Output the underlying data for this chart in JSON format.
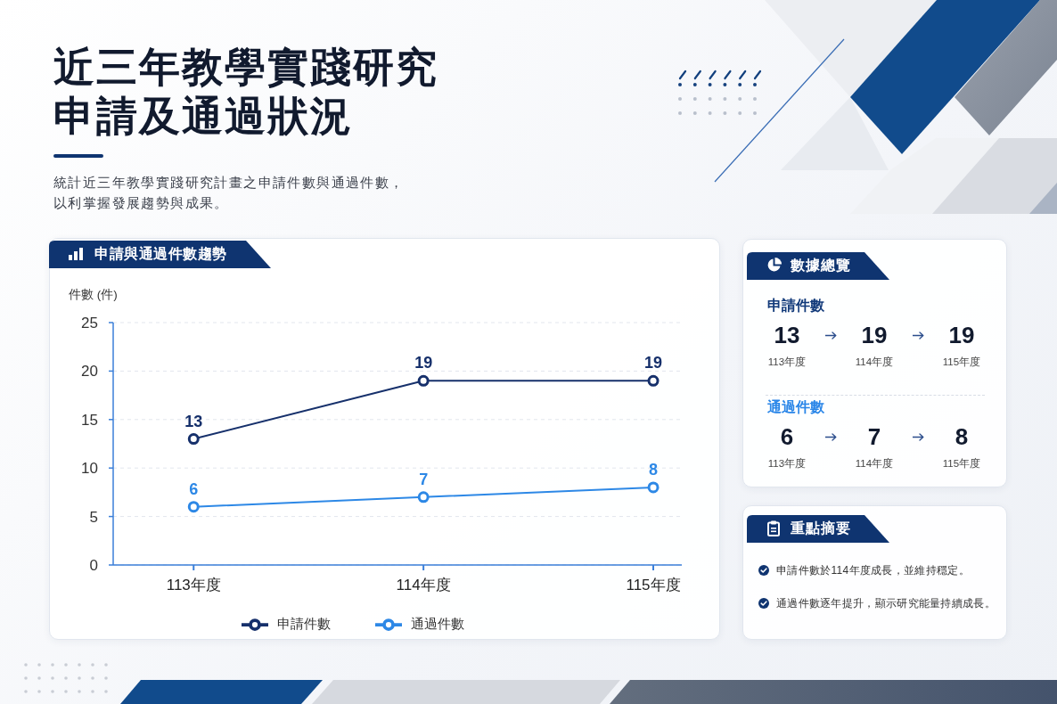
{
  "chart_data": [
    {
      "type": "other",
      "title": "近三年教學實踐研究申請及通過狀況",
      "subtitle": "統計近三年教學實踐研究計畫之申請件數與通過件數，以利掌握發展趨勢與成果。"
    },
    {
      "type": "line",
      "title": "申請與通過件數趨勢",
      "ylabel": "件數 (件)",
      "categories": [
        "113年度",
        "114年度",
        "115年度"
      ],
      "series": [
        {
          "name": "申請件數",
          "color": "#16306b",
          "values": [
            13,
            19,
            19
          ]
        },
        {
          "name": "通過件數",
          "color": "#2d88e6",
          "values": [
            6,
            7,
            8
          ]
        }
      ],
      "ylim": [
        0,
        25
      ],
      "yticks": [
        0,
        5,
        10,
        15,
        20,
        25
      ],
      "grid": "y",
      "legend": "bottom",
      "marker": "circle",
      "data_labels": true
    },
    {
      "type": "other",
      "title": "數據總覽",
      "categories": [
        "113年度",
        "114年度",
        "115年度"
      ],
      "series": [
        {
          "name": "申請件數",
          "values": [
            13,
            19,
            19
          ]
        },
        {
          "name": "通過件數",
          "values": [
            6,
            7,
            8
          ]
        }
      ],
      "data_labels": true
    },
    {
      "type": "other",
      "title": "重點摘要",
      "annotations": [
        "申請件數於114年度成長，並維持穩定。",
        "通過件數逐年提升，顯示研究能量持續成長。"
      ]
    }
  ]
}
